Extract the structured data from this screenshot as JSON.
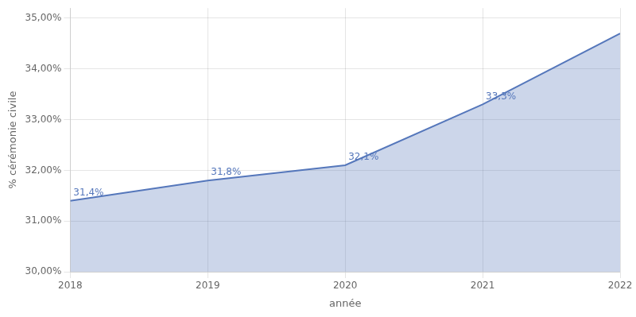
{
  "chart_data": {
    "type": "area",
    "x": [
      2018,
      2019,
      2020,
      2021,
      2022
    ],
    "values": [
      0.314,
      0.318,
      0.321,
      0.333,
      0.347
    ],
    "data_labels": true,
    "value_labels": [
      "31,4%",
      "31,8%",
      "32,1%",
      "33,3%",
      null
    ],
    "color": "#5577bb",
    "xlabel": "année",
    "ylabel": "% cérémonie civile",
    "xlim": [
      2018,
      2022
    ],
    "xticks": [
      2018,
      2019,
      2020,
      2021,
      2022
    ],
    "ylim": [
      0.3,
      0.352
    ],
    "yticks": [
      {
        "value": 0.3,
        "label": "30,00%"
      },
      {
        "value": 0.31,
        "label": "31,00%"
      },
      {
        "value": 0.32,
        "label": "32,00%"
      },
      {
        "value": 0.33,
        "label": "33,00%"
      },
      {
        "value": 0.34,
        "label": "34,00%"
      },
      {
        "value": 0.35,
        "label": "35,00%"
      }
    ],
    "grid": true
  }
}
